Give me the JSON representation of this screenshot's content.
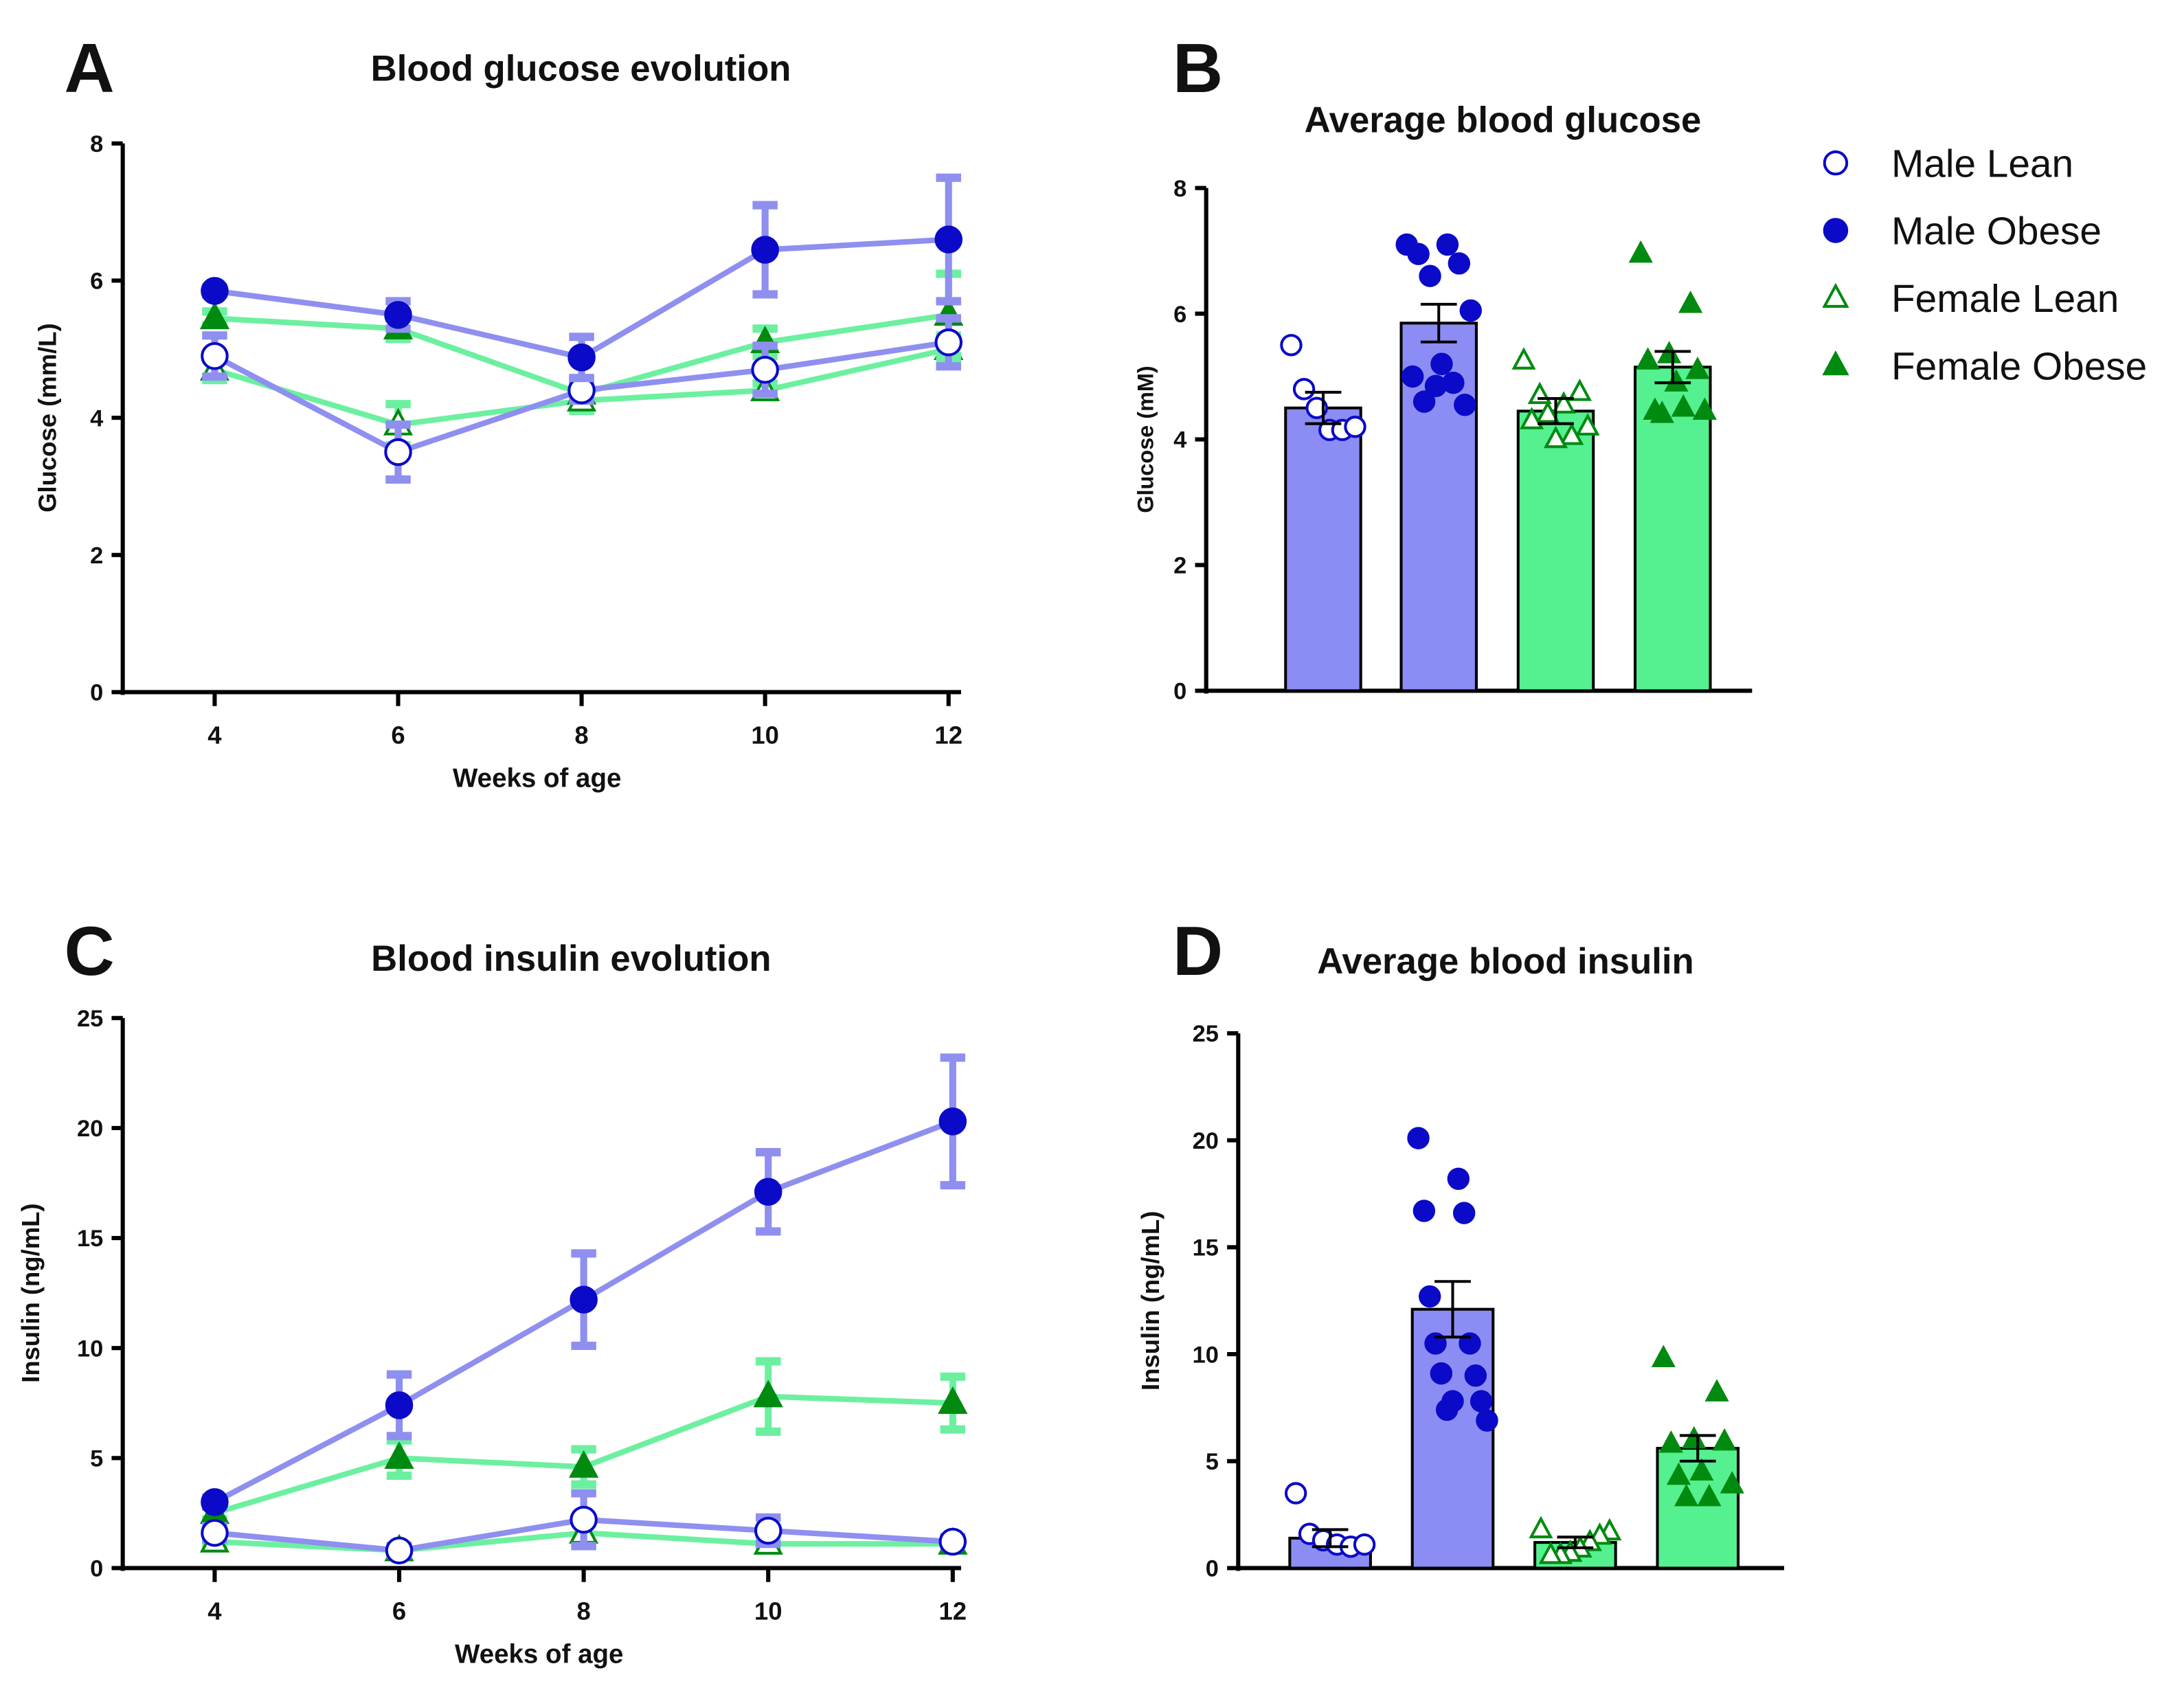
{
  "colors": {
    "male_line": "#8f8ff0",
    "male_marker": "#0a0ac8",
    "female_line": "#6cf0a0",
    "female_marker": "#008a10",
    "male_bar": "#8c8cf5",
    "female_bar": "#55f08f"
  },
  "legend": {
    "placement": "right of panel B",
    "items": [
      {
        "label": "Male Lean",
        "marker": "open-circle"
      },
      {
        "label": "Male Obese",
        "marker": "filled-circle"
      },
      {
        "label": "Female Lean",
        "marker": "open-triangle"
      },
      {
        "label": "Female Obese",
        "marker": "filled-triangle"
      }
    ]
  },
  "chart_data": [
    {
      "panel": "A",
      "type": "line",
      "title": "Blood glucose evolution",
      "xlabel": "Weeks of age",
      "ylabel": "Glucose (mm/L)",
      "x": [
        4,
        6,
        8,
        10,
        12
      ],
      "ylim": [
        0,
        8
      ],
      "yticks": [
        0,
        2,
        4,
        6,
        8
      ],
      "series": [
        {
          "name": "Male Lean",
          "values": [
            4.9,
            3.5,
            4.4,
            4.7,
            5.1
          ],
          "error": [
            0.3,
            0.4,
            0.15,
            0.35,
            0.35
          ]
        },
        {
          "name": "Male Obese",
          "values": [
            5.85,
            5.5,
            4.88,
            6.45,
            6.6
          ],
          "error": [
            0.05,
            0.2,
            0.3,
            0.65,
            0.9
          ]
        },
        {
          "name": "Female Lean",
          "values": [
            4.7,
            3.9,
            4.25,
            4.4,
            5.0
          ],
          "error": [
            0.15,
            0.3,
            0.15,
            0.1,
            0.2
          ]
        },
        {
          "name": "Female Obese",
          "values": [
            5.45,
            5.3,
            4.35,
            5.1,
            5.5
          ],
          "error": [
            0.1,
            0.15,
            0.1,
            0.2,
            0.6
          ]
        }
      ]
    },
    {
      "panel": "B",
      "type": "bar",
      "title": "Average blood glucose",
      "ylabel": "Glucose (mM)",
      "ylim": [
        0,
        8
      ],
      "yticks": [
        0,
        2,
        4,
        6,
        8
      ],
      "series": [
        {
          "name": "Male Lean",
          "mean": 4.5,
          "sem": 0.25,
          "points": [
            5.5,
            4.8,
            4.5,
            4.15,
            4.15,
            4.2
          ]
        },
        {
          "name": "Male Obese",
          "mean": 5.85,
          "sem": 0.3,
          "points": [
            7.1,
            7.1,
            6.95,
            6.8,
            6.6,
            6.05,
            5.2,
            5.0,
            4.9,
            4.6,
            4.55,
            4.85
          ]
        },
        {
          "name": "Female Lean",
          "mean": 4.45,
          "sem": 0.2,
          "points": [
            5.25,
            4.75,
            4.55,
            4.4,
            4.3,
            4.2,
            4.05,
            4.0,
            4.7
          ]
        },
        {
          "name": "Female Obese",
          "mean": 5.15,
          "sem": 0.25,
          "points": [
            6.95,
            6.15,
            5.35,
            5.25,
            5.1,
            4.9,
            4.45,
            4.45,
            4.5,
            4.4
          ]
        }
      ]
    },
    {
      "panel": "C",
      "type": "line",
      "title": "Blood insulin evolution",
      "xlabel": "Weeks of age",
      "ylabel": "Insulin (ng/mL)",
      "x": [
        4,
        6,
        8,
        10,
        12
      ],
      "ylim": [
        0,
        25
      ],
      "yticks": [
        0,
        5,
        10,
        15,
        20,
        25
      ],
      "series": [
        {
          "name": "Male Lean",
          "values": [
            1.6,
            0.8,
            2.2,
            1.7,
            1.2
          ],
          "error": [
            0.3,
            0.2,
            1.2,
            0.6,
            0.2
          ]
        },
        {
          "name": "Male Obese",
          "values": [
            3.0,
            7.4,
            12.2,
            17.1,
            20.3
          ],
          "error": [
            0.2,
            1.4,
            2.1,
            1.8,
            2.9
          ]
        },
        {
          "name": "Female Lean",
          "values": [
            1.2,
            0.8,
            1.6,
            1.1,
            1.1
          ],
          "error": [
            0.2,
            0.2,
            0.5,
            0.3,
            0.2
          ]
        },
        {
          "name": "Female Obese",
          "values": [
            2.5,
            5.0,
            4.6,
            7.8,
            7.5
          ],
          "error": [
            0.3,
            0.8,
            0.8,
            1.6,
            1.2
          ]
        }
      ]
    },
    {
      "panel": "D",
      "type": "bar",
      "title": "Average blood insulin",
      "ylabel": "Insulin (ng/mL)",
      "ylim": [
        0,
        25
      ],
      "yticks": [
        0,
        5,
        10,
        15,
        20,
        25
      ],
      "series": [
        {
          "name": "Male Lean",
          "mean": 1.4,
          "sem": 0.4,
          "points": [
            3.5,
            1.6,
            1.3,
            1.1,
            1.0,
            1.1
          ]
        },
        {
          "name": "Male Obese",
          "mean": 12.1,
          "sem": 1.3,
          "points": [
            20.1,
            18.2,
            16.7,
            16.6,
            12.7,
            10.5,
            10.5,
            9.0,
            9.1,
            7.8,
            7.4,
            6.9,
            7.8
          ]
        },
        {
          "name": "Female Lean",
          "mean": 1.2,
          "sem": 0.25,
          "points": [
            1.8,
            1.7,
            1.5,
            1.2,
            0.9,
            0.7,
            0.6,
            0.6
          ]
        },
        {
          "name": "Female Obese",
          "mean": 5.6,
          "sem": 0.6,
          "points": [
            9.8,
            8.2,
            6.0,
            5.8,
            5.9,
            4.5,
            4.3,
            3.9,
            3.3,
            3.3
          ]
        }
      ]
    }
  ]
}
